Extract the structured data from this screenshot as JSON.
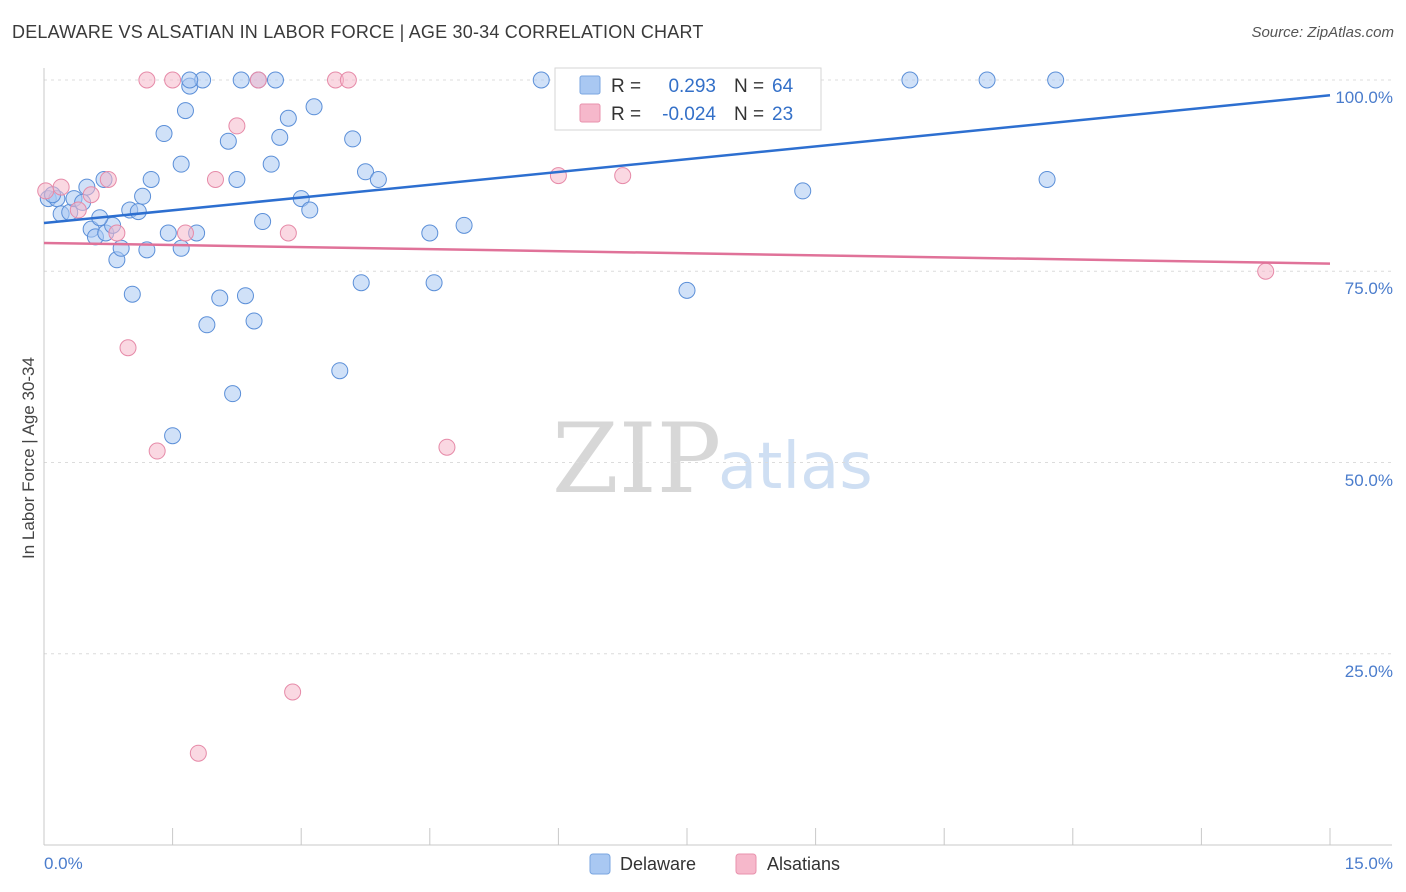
{
  "header": {
    "title": "DELAWARE VS ALSATIAN IN LABOR FORCE | AGE 30-34 CORRELATION CHART",
    "source": "Source: ZipAtlas.com"
  },
  "watermark": {
    "zip": "ZIP",
    "atlas": "atlas"
  },
  "legend": {
    "rows": [
      {
        "r_label": "R =",
        "r_value": "0.293",
        "n_label": "N =",
        "n_value": "64",
        "color": "#a9c8f2"
      },
      {
        "r_label": "R =",
        "r_value": "-0.024",
        "n_label": "N =",
        "n_value": "23",
        "color": "#f6b8cb"
      }
    ]
  },
  "bottom_legend": {
    "items": [
      "Delaware",
      "Alsatians"
    ]
  },
  "chart_data": {
    "type": "scatter",
    "title": "DELAWARE VS ALSATIAN IN LABOR FORCE | AGE 30-34 CORRELATION CHART",
    "xlabel": "",
    "ylabel": "In Labor Force | Age 30-34",
    "xlim": [
      0,
      15
    ],
    "ylim": [
      0,
      100
    ],
    "x_tick_labels": [
      "0.0%",
      "15.0%"
    ],
    "y_ticks": [
      25,
      50,
      75,
      100
    ],
    "y_tick_labels": [
      "25.0%",
      "50.0%",
      "75.0%",
      "100.0%"
    ],
    "grid": true,
    "series": [
      {
        "name": "Delaware",
        "color": "#5b8fd8",
        "fill": "#a9c8f2",
        "trend": {
          "x": [
            0,
            15
          ],
          "y": [
            81.3,
            98.0
          ],
          "color": "#2d6fd0"
        },
        "points": [
          {
            "x": 0.05,
            "y": 84.5
          },
          {
            "x": 0.15,
            "y": 84.5
          },
          {
            "x": 0.2,
            "y": 82.5
          },
          {
            "x": 0.3,
            "y": 82.7
          },
          {
            "x": 0.35,
            "y": 84.5
          },
          {
            "x": 0.5,
            "y": 86.0
          },
          {
            "x": 0.55,
            "y": 80.5
          },
          {
            "x": 0.6,
            "y": 79.5
          },
          {
            "x": 0.7,
            "y": 87.0
          },
          {
            "x": 0.72,
            "y": 80.0
          },
          {
            "x": 0.8,
            "y": 81.0
          },
          {
            "x": 0.85,
            "y": 76.5
          },
          {
            "x": 0.9,
            "y": 78.0
          },
          {
            "x": 1.0,
            "y": 83.0
          },
          {
            "x": 1.03,
            "y": 72.0
          },
          {
            "x": 1.1,
            "y": 82.8
          },
          {
            "x": 1.15,
            "y": 84.8
          },
          {
            "x": 1.2,
            "y": 77.8
          },
          {
            "x": 1.25,
            "y": 87.0
          },
          {
            "x": 1.4,
            "y": 93.0
          },
          {
            "x": 1.45,
            "y": 80.0
          },
          {
            "x": 1.5,
            "y": 53.5
          },
          {
            "x": 1.6,
            "y": 89.0
          },
          {
            "x": 1.6,
            "y": 78.0
          },
          {
            "x": 1.65,
            "y": 96.0
          },
          {
            "x": 1.7,
            "y": 99.2
          },
          {
            "x": 1.78,
            "y": 80.0
          },
          {
            "x": 1.85,
            "y": 100.0
          },
          {
            "x": 1.9,
            "y": 68.0
          },
          {
            "x": 2.05,
            "y": 71.5
          },
          {
            "x": 2.15,
            "y": 92.0
          },
          {
            "x": 2.2,
            "y": 59.0
          },
          {
            "x": 2.25,
            "y": 87.0
          },
          {
            "x": 2.3,
            "y": 100.0
          },
          {
            "x": 2.35,
            "y": 71.8
          },
          {
            "x": 2.5,
            "y": 100.0
          },
          {
            "x": 2.45,
            "y": 68.5
          },
          {
            "x": 2.55,
            "y": 81.5
          },
          {
            "x": 2.65,
            "y": 89.0
          },
          {
            "x": 2.7,
            "y": 100.0
          },
          {
            "x": 2.75,
            "y": 92.5
          },
          {
            "x": 2.85,
            "y": 95.0
          },
          {
            "x": 3.0,
            "y": 84.5
          },
          {
            "x": 3.1,
            "y": 83.0
          },
          {
            "x": 3.15,
            "y": 96.5
          },
          {
            "x": 3.45,
            "y": 62.0
          },
          {
            "x": 3.6,
            "y": 92.3
          },
          {
            "x": 3.7,
            "y": 73.5
          },
          {
            "x": 3.75,
            "y": 88.0
          },
          {
            "x": 3.9,
            "y": 87.0
          },
          {
            "x": 4.5,
            "y": 80.0
          },
          {
            "x": 4.55,
            "y": 73.5
          },
          {
            "x": 4.9,
            "y": 81.0
          },
          {
            "x": 5.8,
            "y": 100.0
          },
          {
            "x": 7.5,
            "y": 72.5
          },
          {
            "x": 8.85,
            "y": 85.5
          },
          {
            "x": 10.1,
            "y": 100.0
          },
          {
            "x": 11.0,
            "y": 100.0
          },
          {
            "x": 11.7,
            "y": 87.0
          },
          {
            "x": 11.8,
            "y": 100.0
          },
          {
            "x": 0.1,
            "y": 85.0
          },
          {
            "x": 0.45,
            "y": 84.0
          },
          {
            "x": 1.7,
            "y": 100.0
          },
          {
            "x": 0.65,
            "y": 82.0
          }
        ]
      },
      {
        "name": "Alsatians",
        "color": "#e68aa8",
        "fill": "#f6b8cb",
        "trend": {
          "x": [
            0,
            15
          ],
          "y": [
            78.7,
            76.0
          ],
          "color": "#e07299"
        },
        "points": [
          {
            "x": 0.02,
            "y": 85.5
          },
          {
            "x": 0.2,
            "y": 86.0
          },
          {
            "x": 0.4,
            "y": 83.0
          },
          {
            "x": 0.55,
            "y": 85.0
          },
          {
            "x": 0.75,
            "y": 87.0
          },
          {
            "x": 0.85,
            "y": 80.0
          },
          {
            "x": 0.98,
            "y": 65.0
          },
          {
            "x": 1.2,
            "y": 100.0
          },
          {
            "x": 1.32,
            "y": 51.5
          },
          {
            "x": 1.5,
            "y": 100.0
          },
          {
            "x": 1.65,
            "y": 80.0
          },
          {
            "x": 1.8,
            "y": 12.0
          },
          {
            "x": 2.0,
            "y": 87.0
          },
          {
            "x": 2.25,
            "y": 94.0
          },
          {
            "x": 2.5,
            "y": 100.0
          },
          {
            "x": 2.85,
            "y": 80.0
          },
          {
            "x": 2.9,
            "y": 20.0
          },
          {
            "x": 3.4,
            "y": 100.0
          },
          {
            "x": 3.55,
            "y": 100.0
          },
          {
            "x": 4.7,
            "y": 52.0
          },
          {
            "x": 6.0,
            "y": 87.5
          },
          {
            "x": 6.75,
            "y": 87.5
          },
          {
            "x": 14.25,
            "y": 75.0
          }
        ]
      }
    ]
  }
}
